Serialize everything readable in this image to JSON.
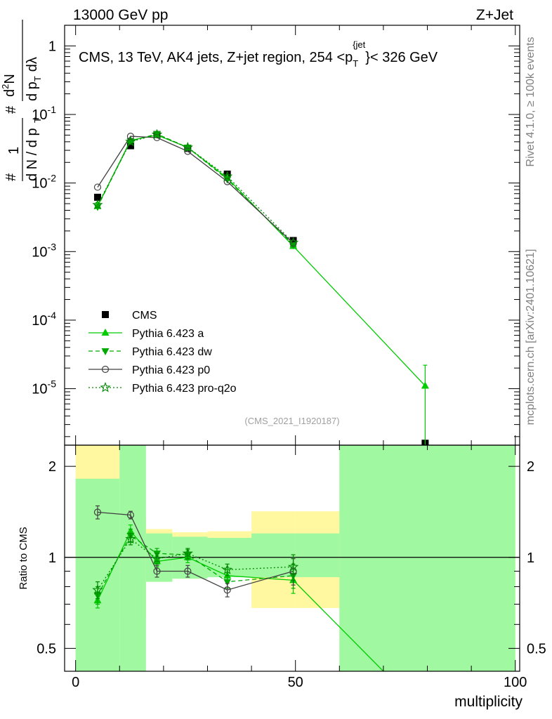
{
  "header": {
    "energy_label": "13000 GeV pp",
    "process_label": "Z+Jet"
  },
  "side_text": {
    "rivet": "Rivet 4.1.0, ≥ 100k events",
    "mcplots": "mcplots.cern.ch [arXiv:2401.10621]"
  },
  "chart_data": [
    {
      "type": "line",
      "title": "CMS, 13 TeV, AK4 jets, Z+jet region, 254 <p_T^{jet}< 326 GeV",
      "title_parts": {
        "main": "CMS, 13 TeV, AK4 jets, Z+jet region, 254 <p",
        "sub": "T",
        "sup": "{jet",
        "tail": "}< 326 GeV"
      },
      "ylabel": "1/(dN/dp_T) d²N/(dp_T dλ)",
      "ylabel_parts": {
        "hash1": "#",
        "one": "1",
        "hash2": "#",
        "dN": "d N / d p",
        "T1": "T",
        "d2N": "d",
        "two": "2",
        "N": "N",
        "dp": "d p",
        "T2": "T",
        "dlambda": "dλ"
      },
      "yscale": "log",
      "ylim": [
        1.5e-06,
        2.0
      ],
      "xlim": [
        -2.5,
        101
      ],
      "y_ticks": [
        {
          "value": 1,
          "label": "1"
        },
        {
          "value": 0.1,
          "base": "10",
          "exp": "-1"
        },
        {
          "value": 0.01,
          "base": "10",
          "exp": "-2"
        },
        {
          "value": 0.001,
          "base": "10",
          "exp": "-3"
        },
        {
          "value": 0.0001,
          "base": "10",
          "exp": "-4"
        },
        {
          "value": 1e-05,
          "base": "10",
          "exp": "-5"
        }
      ],
      "watermark": "(CMS_2021_I1920187)",
      "legend_position": "lower-left",
      "series": [
        {
          "name": "CMS",
          "style": "marker-square",
          "color": "#000000",
          "x": [
            5,
            12.5,
            18.5,
            25.5,
            34.5,
            49.5,
            79.5
          ],
          "y": [
            0.0062,
            0.035,
            0.051,
            0.032,
            0.0135,
            0.00145,
            1.6e-06
          ]
        },
        {
          "name": "Pythia 6.423 a",
          "style": "solid-triangle-up",
          "color": "#00cc00",
          "x": [
            5,
            12.5,
            18.5,
            25.5,
            34.5,
            49.5,
            79.5
          ],
          "y": [
            0.0046,
            0.042,
            0.05,
            0.033,
            0.0118,
            0.0012,
            1.1e-05
          ],
          "yerr_hi": [
            0.0052,
            0.044,
            0.052,
            0.034,
            0.0122,
            0.00125,
            2.2e-05
          ],
          "yerr_lo": [
            0.004,
            0.04,
            0.048,
            0.032,
            0.0114,
            0.00115,
            1.4e-06
          ]
        },
        {
          "name": "Pythia 6.423 dw",
          "style": "dashed-triangle-down",
          "color": "#00aa00",
          "x": [
            5,
            12.5,
            18.5,
            25.5,
            34.5,
            49.5
          ],
          "y": [
            0.0045,
            0.041,
            0.052,
            0.033,
            0.0113,
            0.00125
          ]
        },
        {
          "name": "Pythia 6.423 p0",
          "style": "solid-open-circle",
          "color": "#404040",
          "x": [
            5,
            12.5,
            18.5,
            25.5,
            34.5,
            49.5
          ],
          "y": [
            0.0087,
            0.048,
            0.046,
            0.029,
            0.0105,
            0.00132
          ]
        },
        {
          "name": "Pythia 6.423 pro-q2o",
          "style": "dotted-open-star",
          "color": "#008800",
          "x": [
            5,
            12.5,
            18.5,
            25.5,
            34.5,
            49.5
          ],
          "y": [
            0.0048,
            0.04,
            0.051,
            0.033,
            0.0125,
            0.00135
          ]
        }
      ]
    },
    {
      "type": "line",
      "ylabel": "Ratio to CMS",
      "xlabel": "multiplicity",
      "yscale": "log",
      "ylim": [
        0.42,
        2.35
      ],
      "xlim": [
        -2.5,
        101
      ],
      "x_ticks": [
        0,
        50,
        100
      ],
      "x_tick_labels": [
        "0",
        "50",
        "100"
      ],
      "y_ticks": [
        0.5,
        1,
        2
      ],
      "y_tick_labels": [
        "0.5",
        "1",
        "2"
      ],
      "reference_line": 1,
      "uncertainty_bands": [
        {
          "x0": 0,
          "x1": 10,
          "stat_lo": 0.42,
          "stat_hi": 1.82,
          "sys_lo": 0.42,
          "sys_hi": 2.35
        },
        {
          "x0": 10,
          "x1": 16,
          "stat_lo": 0.42,
          "stat_hi": 2.35,
          "sys_lo": 0.63,
          "sys_hi": 1.37
        },
        {
          "x0": 16,
          "x1": 22,
          "stat_lo": 0.83,
          "stat_hi": 1.2,
          "sys_lo": 0.83,
          "sys_hi": 1.24
        },
        {
          "x0": 22,
          "x1": 30,
          "stat_lo": 0.85,
          "stat_hi": 1.17,
          "sys_lo": 0.85,
          "sys_hi": 1.21
        },
        {
          "x0": 30,
          "x1": 40,
          "stat_lo": 0.86,
          "stat_hi": 1.16,
          "sys_lo": 0.86,
          "sys_hi": 1.22
        },
        {
          "x0": 40,
          "x1": 50,
          "stat_lo": 0.86,
          "stat_hi": 1.2,
          "sys_lo": 0.68,
          "sys_hi": 1.42
        },
        {
          "x0": 50,
          "x1": 60,
          "stat_lo": 0.86,
          "stat_hi": 1.2,
          "sys_lo": 0.68,
          "sys_hi": 1.42
        },
        {
          "x0": 60,
          "x1": 100,
          "stat_lo": 0.42,
          "stat_hi": 2.35,
          "sys_lo": 0.42,
          "sys_hi": 2.35
        }
      ],
      "series": [
        {
          "name": "Pythia 6.423 a",
          "style": "solid-triangle-up",
          "color": "#00cc00",
          "x": [
            5,
            12.5,
            18.5,
            25.5,
            34.5,
            49.5,
            70
          ],
          "y": [
            0.72,
            1.22,
            0.97,
            1.0,
            0.87,
            0.84,
            0.42
          ],
          "yerr_hi": [
            0.77,
            1.28,
            1.01,
            1.04,
            0.91,
            0.92,
            0.42
          ],
          "yerr_lo": [
            0.68,
            1.16,
            0.93,
            0.96,
            0.83,
            0.76,
            0.42
          ]
        },
        {
          "name": "Pythia 6.423 dw",
          "style": "dashed-triangle-down",
          "color": "#00aa00",
          "x": [
            5,
            12.5,
            18.5,
            25.5,
            34.5,
            49.5
          ],
          "y": [
            0.75,
            1.18,
            1.03,
            1.02,
            0.83,
            0.87
          ],
          "yerr_hi": [
            0.8,
            1.24,
            1.07,
            1.06,
            0.87,
            0.95
          ],
          "yerr_lo": [
            0.7,
            1.12,
            0.99,
            0.98,
            0.79,
            0.79
          ]
        },
        {
          "name": "Pythia 6.423 p0",
          "style": "solid-open-circle",
          "color": "#404040",
          "x": [
            5,
            12.5,
            18.5,
            25.5,
            34.5,
            49.5
          ],
          "y": [
            1.41,
            1.38,
            0.9,
            0.9,
            0.78,
            0.9
          ],
          "yerr_hi": [
            1.48,
            1.42,
            0.94,
            0.94,
            0.82,
            0.99
          ],
          "yerr_lo": [
            1.34,
            1.34,
            0.86,
            0.86,
            0.74,
            0.81
          ]
        },
        {
          "name": "Pythia 6.423 pro-q2o",
          "style": "dotted-open-star",
          "color": "#008800",
          "x": [
            5,
            12.5,
            18.5,
            25.5,
            34.5,
            49.5
          ],
          "y": [
            0.78,
            1.15,
            0.99,
            1.03,
            0.91,
            0.93
          ],
          "yerr_hi": [
            0.83,
            1.2,
            1.03,
            1.07,
            0.95,
            1.02
          ],
          "yerr_lo": [
            0.73,
            1.1,
            0.95,
            0.99,
            0.87,
            0.84
          ]
        }
      ]
    }
  ],
  "colors": {
    "stat_band": "#a0f8a0",
    "sys_band": "#fff8a0"
  }
}
